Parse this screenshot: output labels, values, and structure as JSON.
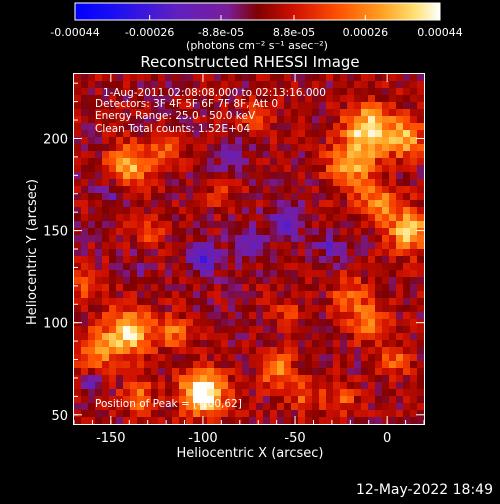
{
  "chart_data": {
    "type": "heatmap",
    "title": "Reconstructed RHESSI Image",
    "xlabel": "Heliocentric X (arcsec)",
    "ylabel": "Heliocentric Y (arcsec)",
    "xlim": [
      -170,
      20
    ],
    "ylim": [
      45,
      235
    ],
    "x_ticks": [
      -150,
      -100,
      -50,
      0
    ],
    "x_tick_labels": [
      "-150",
      "-100",
      "-50",
      "0"
    ],
    "y_ticks": [
      50,
      100,
      150,
      200
    ],
    "y_tick_labels": [
      "50",
      "100",
      "150",
      "200"
    ],
    "colorbar": {
      "range": [
        -0.00044,
        0.00044
      ],
      "ticks": [
        -0.00044,
        -0.00026,
        -8.8e-05,
        8.8e-05,
        0.00026,
        0.00044
      ],
      "tick_labels": [
        "-0.00044",
        "-0.00026",
        "-8.8e-05",
        "8.8e-05",
        "0.00026",
        "0.00044"
      ],
      "units_label": "(photons cm⁻² s⁻¹ asec⁻²)",
      "colormap": [
        "#0000ff",
        "#8020d0",
        "#b00000",
        "#ff6000",
        "#ffd030",
        "#ffffff"
      ]
    },
    "annotations": [
      "1-Aug-2011 02:08:08.000 to 02:13:16.000",
      "Detectors: 3F 4F 5F 6F 7F 8F, Att 0",
      "Energy Range: 25.0 - 50.0 keV",
      "Clean     Total counts: 1.52E+04"
    ],
    "peak_label": "Position of Peak = [-100,62]",
    "peak_position": [
      -100,
      62
    ],
    "hotspots": [
      {
        "x": -100,
        "y": 62,
        "amp": 0.00052,
        "sigma": 8
      },
      {
        "x": -140,
        "y": 95,
        "amp": 0.00036,
        "sigma": 9
      },
      {
        "x": -158,
        "y": 85,
        "amp": 0.00026,
        "sigma": 7
      },
      {
        "x": -115,
        "y": 95,
        "amp": 0.0002,
        "sigma": 6
      },
      {
        "x": -135,
        "y": 60,
        "amp": 0.00022,
        "sigma": 6
      },
      {
        "x": -60,
        "y": 75,
        "amp": 0.00022,
        "sigma": 7
      },
      {
        "x": -45,
        "y": 60,
        "amp": 0.00016,
        "sigma": 6
      },
      {
        "x": -140,
        "y": 185,
        "amp": 0.0003,
        "sigma": 8
      },
      {
        "x": -120,
        "y": 195,
        "amp": 0.00018,
        "sigma": 6
      },
      {
        "x": -130,
        "y": 150,
        "amp": 0.00014,
        "sigma": 6
      },
      {
        "x": -20,
        "y": 185,
        "amp": 0.00028,
        "sigma": 9
      },
      {
        "x": -10,
        "y": 205,
        "amp": 0.00038,
        "sigma": 9
      },
      {
        "x": 10,
        "y": 200,
        "amp": 0.0003,
        "sigma": 7
      },
      {
        "x": 12,
        "y": 150,
        "amp": 0.00034,
        "sigma": 8
      },
      {
        "x": -5,
        "y": 165,
        "amp": 0.00026,
        "sigma": 7
      },
      {
        "x": -20,
        "y": 115,
        "amp": 0.00018,
        "sigma": 7
      },
      {
        "x": -10,
        "y": 100,
        "amp": 0.00022,
        "sigma": 7
      },
      {
        "x": 5,
        "y": 80,
        "amp": 0.00018,
        "sigma": 6
      },
      {
        "x": -25,
        "y": 60,
        "amp": 0.00016,
        "sigma": 6
      },
      {
        "x": -70,
        "y": 210,
        "amp": 0.00014,
        "sigma": 6
      },
      {
        "x": -90,
        "y": 170,
        "amp": 0.0001,
        "sigma": 6
      },
      {
        "x": -165,
        "y": 120,
        "amp": 0.00016,
        "sigma": 6
      },
      {
        "x": -55,
        "y": 105,
        "amp": 0.00012,
        "sigma": 6
      }
    ],
    "coldspots": [
      {
        "x": -100,
        "y": 135,
        "amp": 0.00024,
        "sigma": 6
      },
      {
        "x": -55,
        "y": 155,
        "amp": 0.00022,
        "sigma": 6
      },
      {
        "x": -75,
        "y": 145,
        "amp": 0.00018,
        "sigma": 6
      },
      {
        "x": -30,
        "y": 140,
        "amp": 0.00018,
        "sigma": 5
      },
      {
        "x": -85,
        "y": 190,
        "amp": 0.00014,
        "sigma": 6
      },
      {
        "x": -150,
        "y": 170,
        "amp": 0.00014,
        "sigma": 5
      },
      {
        "x": -160,
        "y": 65,
        "amp": 0.00014,
        "sigma": 4
      },
      {
        "x": -135,
        "y": 130,
        "amp": 0.0001,
        "sigma": 5
      }
    ]
  },
  "footer": {
    "date": "12-May-2022 18:49"
  }
}
